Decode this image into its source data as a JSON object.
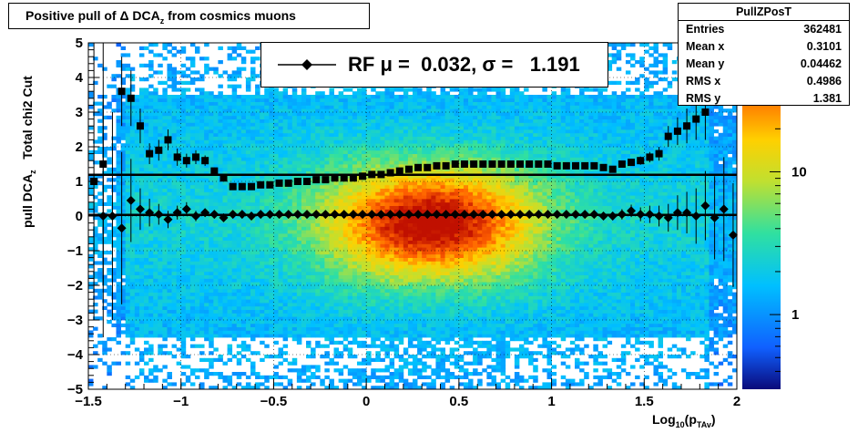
{
  "title": "Positive pull of Δ DCA_z from cosmics muons",
  "title_parts": {
    "main": "Positive pull of Δ DCA",
    "sub": "z",
    "rest": " from cosmics muons"
  },
  "stats": {
    "name": "PullZPosT",
    "rows": [
      {
        "label": "Entries",
        "value": "362481"
      },
      {
        "label": "Mean x",
        "value": "0.3101"
      },
      {
        "label": "Mean y",
        "value": "0.04462"
      },
      {
        "label": "RMS x",
        "value": "0.4986"
      },
      {
        "label": "RMS y",
        "value": "1.381"
      }
    ]
  },
  "legend": {
    "text": "RF μ =  0.032, σ =   1.191"
  },
  "axes": {
    "ylabel_main": "pull DCA",
    "ylabel_sub": "z",
    "ylabel_rest": "   Total chi2 Cut",
    "xlabel_main": "Log",
    "xlabel_sub1": "10",
    "xlabel_mid": "(p",
    "xlabel_sub2": "TAv",
    "xlabel_end": ")"
  },
  "colors": {
    "marker": "#000000",
    "palette": [
      "#0a0a7a",
      "#1060ff",
      "#00c0ff",
      "#30e0a0",
      "#c0e030",
      "#ffd000",
      "#ff6000",
      "#c01000"
    ]
  },
  "chart_data": {
    "type": "heatmap",
    "xlim": [
      -1.5,
      2
    ],
    "ylim": [
      -5,
      5
    ],
    "xticks": [
      "-1.5",
      "-1",
      "-0.5",
      "0",
      "0.5",
      "1",
      "1.5",
      "2"
    ],
    "xtick_values": [
      -1.5,
      -1,
      -0.5,
      0,
      0.5,
      1,
      1.5,
      2
    ],
    "yticks": [
      "-5",
      "-4",
      "-3",
      "-2",
      "-1",
      "0",
      "1",
      "2",
      "3",
      "4",
      "5"
    ],
    "ytick_values": [
      -5,
      -4,
      -3,
      -2,
      -1,
      0,
      1,
      2,
      3,
      4,
      5
    ],
    "colorbar": {
      "scale": "log",
      "ticks": [
        "1",
        "10"
      ],
      "tick_values": [
        1,
        10
      ],
      "range": [
        0.3,
        80
      ]
    },
    "overlays": [
      {
        "name": "mean",
        "x": [
          -1.42,
          -1.37,
          -1.32,
          -1.27,
          -1.22,
          -1.17,
          -1.12,
          -1.07,
          -1.02,
          -0.97,
          -0.92,
          -0.87,
          -0.82,
          -0.77,
          -0.72,
          -0.67,
          -0.62,
          -0.57,
          -0.52,
          -0.47,
          -0.42,
          -0.37,
          -0.32,
          -0.27,
          -0.22,
          -0.17,
          -0.12,
          -0.07,
          -0.02,
          0.03,
          0.08,
          0.13,
          0.18,
          0.23,
          0.28,
          0.33,
          0.38,
          0.43,
          0.48,
          0.53,
          0.58,
          0.63,
          0.68,
          0.73,
          0.78,
          0.83,
          0.88,
          0.93,
          0.98,
          1.03,
          1.08,
          1.13,
          1.18,
          1.23,
          1.28,
          1.33,
          1.38,
          1.43,
          1.48,
          1.53,
          1.58,
          1.63,
          1.68,
          1.73,
          1.78,
          1.83,
          1.88,
          1.93,
          1.98
        ],
        "y": [
          0.0,
          0.0,
          -0.35,
          0.45,
          0.2,
          0.1,
          0.05,
          -0.1,
          0.1,
          0.2,
          0.0,
          0.1,
          0.05,
          -0.05,
          0.05,
          0.05,
          0.0,
          0.05,
          0.05,
          0.05,
          0.05,
          0.05,
          0.05,
          0.05,
          0.05,
          0.05,
          0.05,
          0.05,
          0.05,
          0.05,
          0.05,
          0.05,
          0.05,
          0.05,
          0.05,
          0.05,
          0.05,
          0.05,
          0.05,
          0.05,
          0.05,
          0.05,
          0.05,
          0.05,
          0.05,
          0.05,
          0.05,
          0.05,
          0.05,
          0.05,
          0.05,
          0.05,
          0.05,
          0.05,
          0.0,
          0.0,
          0.05,
          0.15,
          0.05,
          0.05,
          0.0,
          -0.05,
          0.1,
          0.1,
          0.0,
          0.3,
          -0.05,
          0.2,
          -0.55
        ],
        "yerr": [
          3.5,
          3.0,
          2.2,
          1.2,
          0.6,
          0.4,
          0.3,
          0.25,
          0.2,
          0.2,
          0.15,
          0.12,
          0.1,
          0.08,
          0.05,
          0.04,
          0.03,
          0.03,
          0.03,
          0.02,
          0.02,
          0.02,
          0.02,
          0.02,
          0.02,
          0.02,
          0.02,
          0.02,
          0.02,
          0.02,
          0.02,
          0.02,
          0.02,
          0.02,
          0.02,
          0.02,
          0.02,
          0.02,
          0.02,
          0.02,
          0.02,
          0.02,
          0.02,
          0.02,
          0.02,
          0.02,
          0.03,
          0.03,
          0.03,
          0.04,
          0.05,
          0.06,
          0.07,
          0.08,
          0.1,
          0.12,
          0.15,
          0.18,
          0.2,
          0.25,
          0.3,
          0.4,
          0.5,
          0.6,
          0.8,
          1.0,
          1.2,
          1.5,
          1.5
        ]
      },
      {
        "name": "sigma",
        "x": [
          -1.47,
          -1.42,
          -1.32,
          -1.27,
          -1.22,
          -1.17,
          -1.12,
          -1.07,
          -1.02,
          -0.97,
          -0.92,
          -0.87,
          -0.82,
          -0.77,
          -0.72,
          -0.67,
          -0.62,
          -0.57,
          -0.52,
          -0.47,
          -0.42,
          -0.37,
          -0.32,
          -0.27,
          -0.22,
          -0.17,
          -0.12,
          -0.07,
          -0.02,
          0.03,
          0.08,
          0.13,
          0.18,
          0.23,
          0.28,
          0.33,
          0.38,
          0.43,
          0.48,
          0.53,
          0.58,
          0.63,
          0.68,
          0.73,
          0.78,
          0.83,
          0.88,
          0.93,
          0.98,
          1.03,
          1.08,
          1.13,
          1.18,
          1.23,
          1.28,
          1.33,
          1.38,
          1.43,
          1.48,
          1.53,
          1.58,
          1.63,
          1.68,
          1.73,
          1.78,
          1.83
        ],
        "y": [
          1.0,
          1.5,
          3.6,
          3.4,
          2.6,
          1.8,
          1.9,
          2.2,
          1.7,
          1.6,
          1.7,
          1.6,
          1.3,
          1.1,
          0.85,
          0.85,
          0.85,
          0.9,
          0.9,
          0.95,
          0.95,
          1.0,
          1.0,
          1.05,
          1.05,
          1.1,
          1.1,
          1.1,
          1.15,
          1.2,
          1.2,
          1.25,
          1.3,
          1.35,
          1.4,
          1.4,
          1.45,
          1.45,
          1.5,
          1.5,
          1.5,
          1.5,
          1.5,
          1.5,
          1.5,
          1.5,
          1.5,
          1.5,
          1.5,
          1.45,
          1.45,
          1.45,
          1.45,
          1.45,
          1.4,
          1.35,
          1.5,
          1.55,
          1.6,
          1.7,
          1.8,
          2.3,
          2.45,
          2.6,
          2.8,
          3.0
        ],
        "yerr": [
          4.0,
          3.5,
          1.0,
          0.8,
          0.5,
          0.3,
          0.3,
          0.3,
          0.25,
          0.2,
          0.2,
          0.15,
          0.1,
          0.08,
          0.05,
          0.04,
          0.03,
          0.03,
          0.03,
          0.03,
          0.03,
          0.03,
          0.03,
          0.03,
          0.03,
          0.03,
          0.03,
          0.03,
          0.03,
          0.03,
          0.03,
          0.03,
          0.03,
          0.03,
          0.03,
          0.03,
          0.03,
          0.03,
          0.03,
          0.03,
          0.03,
          0.03,
          0.03,
          0.03,
          0.03,
          0.03,
          0.03,
          0.03,
          0.03,
          0.03,
          0.03,
          0.04,
          0.04,
          0.05,
          0.05,
          0.06,
          0.08,
          0.1,
          0.12,
          0.15,
          0.2,
          0.3,
          0.4,
          0.5,
          0.6,
          0.8
        ]
      }
    ],
    "fit_lines": [
      {
        "name": "sigma-fit",
        "y": 1.191
      },
      {
        "name": "mu-fit",
        "y": 0.032
      }
    ]
  }
}
